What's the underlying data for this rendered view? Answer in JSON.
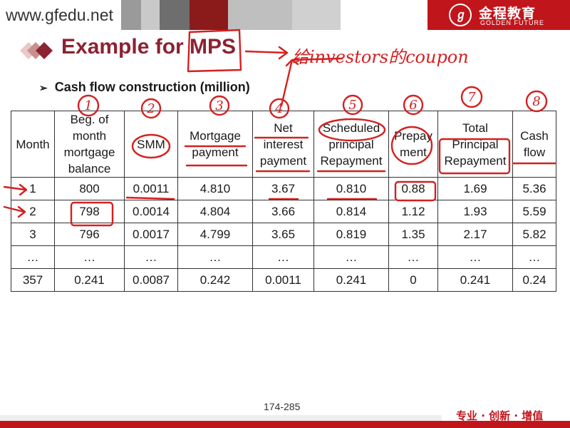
{
  "header": {
    "site_url": "www.gfedu.net",
    "logo_cn": "金程教育",
    "logo_en": "GOLDEN FUTURE",
    "brand_color": "#c0151b"
  },
  "title": "Example for MPS",
  "handwritten_note": "给investors的coupon",
  "subtitle": "Cash flow construction (million)",
  "table": {
    "headers": [
      "Month",
      "Beg. of month mortgage balance",
      "SMM",
      "Mortgage payment",
      "Net interest payment",
      "Scheduled principal Repayment",
      "Prepayment",
      "Total Principal Repayment",
      "Cash flow"
    ],
    "header_lines": [
      [
        "Month"
      ],
      [
        "Beg. of",
        "month",
        "mortgage",
        "balance"
      ],
      [
        "SMM"
      ],
      [
        "Mortgage",
        "payment"
      ],
      [
        "Net",
        "interest",
        "payment"
      ],
      [
        "Scheduled",
        "principal",
        "Repayment"
      ],
      [
        "Prepay",
        "ment"
      ],
      [
        "Total",
        "Principal",
        "Repayment"
      ],
      [
        "Cash",
        "flow"
      ]
    ],
    "rows": [
      [
        "1",
        "800",
        "0.0011",
        "4.810",
        "3.67",
        "0.810",
        "0.88",
        "1.69",
        "5.36"
      ],
      [
        "2",
        "798",
        "0.0014",
        "4.804",
        "3.66",
        "0.814",
        "1.12",
        "1.93",
        "5.59"
      ],
      [
        "3",
        "796",
        "0.0017",
        "4.799",
        "3.65",
        "0.819",
        "1.35",
        "2.17",
        "5.82"
      ],
      [
        "…",
        "…",
        "…",
        "…",
        "…",
        "…",
        "…",
        "…",
        "…"
      ],
      [
        "357",
        "0.241",
        "0.0087",
        "0.242",
        "0.0011",
        "0.241",
        "0",
        "0.241",
        "0.24"
      ]
    ]
  },
  "annotations": {
    "column_numbers": [
      "1",
      "2",
      "3",
      "4",
      "5",
      "6",
      "7",
      "8"
    ],
    "ink_color": "#d42020"
  },
  "footer": {
    "page": "174-285",
    "slogan": "专业 · 创新 · 增值"
  }
}
